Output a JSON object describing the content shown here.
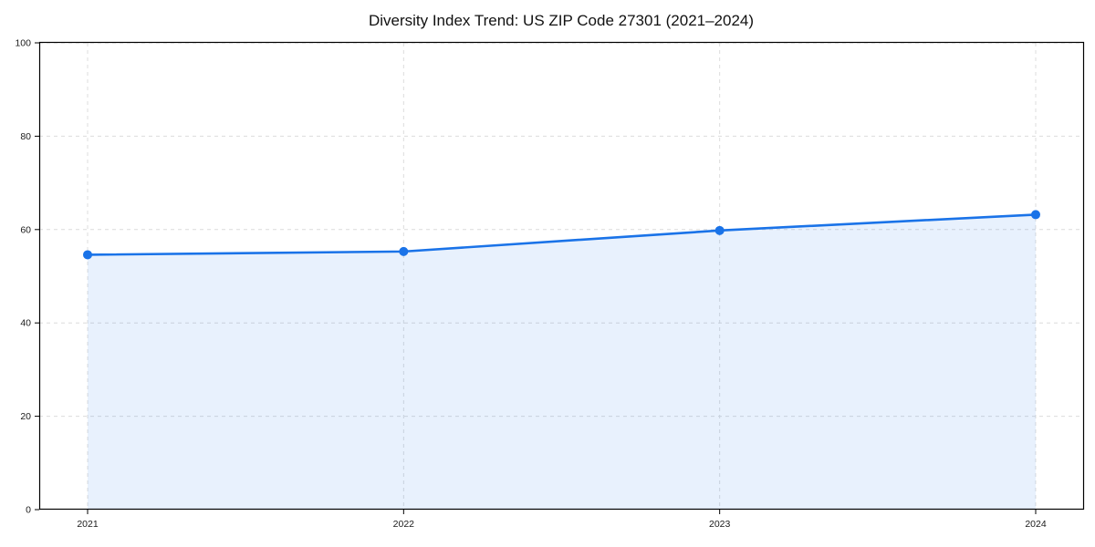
{
  "figure": {
    "background": "#ffffff"
  },
  "chart_data": {
    "type": "area",
    "title": "Diversity Index Trend: US ZIP Code 27301 (2021–2024)",
    "xlabel": "",
    "ylabel": "",
    "categories": [
      "2021",
      "2022",
      "2023",
      "2024"
    ],
    "series": [
      {
        "name": "Diversity Index",
        "values": [
          54.6,
          55.3,
          59.8,
          63.2
        ]
      }
    ],
    "ylim": [
      0,
      100
    ],
    "yticks": [
      0,
      20,
      40,
      60,
      80,
      100
    ],
    "grid": true,
    "grid_style": "dashed",
    "legend_position": "none",
    "line_color": "#1a73e8",
    "marker_color": "#1a73e8",
    "marker_shape": "circle",
    "fill_color": "#1a73e8",
    "fill_opacity": 0.1,
    "grid_color": "#dcdcdc",
    "axis_color": "#000000",
    "tick_label_color": "#1a1a1a",
    "title_color": "#111111"
  }
}
